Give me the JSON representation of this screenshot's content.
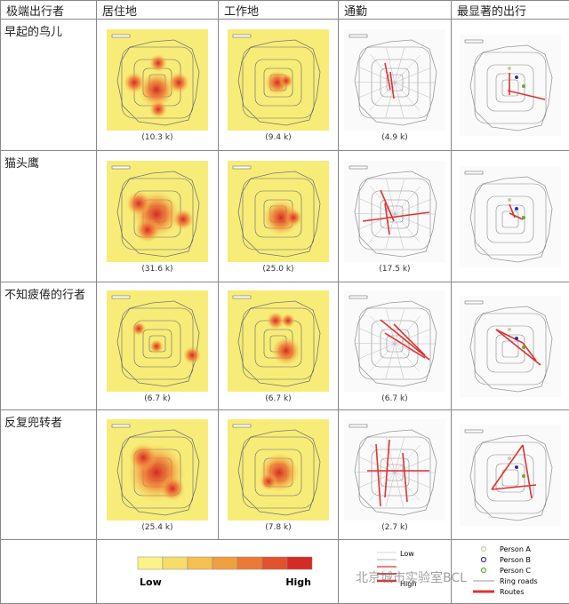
{
  "header": [
    "极端出行者",
    "居住地",
    "工作地",
    "通勤",
    "最显著的出行"
  ],
  "rows": [
    {
      "label": "早起的鸟儿",
      "captions": [
        "(10.3 k)",
        "(9.4 k)",
        "(4.9 k)"
      ]
    },
    {
      "label": "猫头鹰",
      "captions": [
        "(31.6 k)",
        "(25.0 k)",
        "(17.5 k)"
      ]
    },
    {
      "label": "不知疲倦的行者",
      "captions": [
        "(6.7 k)",
        "(6.7 k)",
        "(6.7 k)"
      ]
    },
    {
      "label": "反复兜转者",
      "captions": [
        "(25.4 k)",
        "(7.8 k)",
        "(2.7 k)"
      ]
    }
  ],
  "legend": {
    "heat": {
      "low": "Low",
      "high": "High"
    },
    "flow": {
      "low": "Low",
      "high": "High"
    },
    "persons": [
      "Person A",
      "Person B",
      "Person C",
      "Ring roads",
      "Routes"
    ]
  },
  "watermark": "北京城市实验室BCL"
}
